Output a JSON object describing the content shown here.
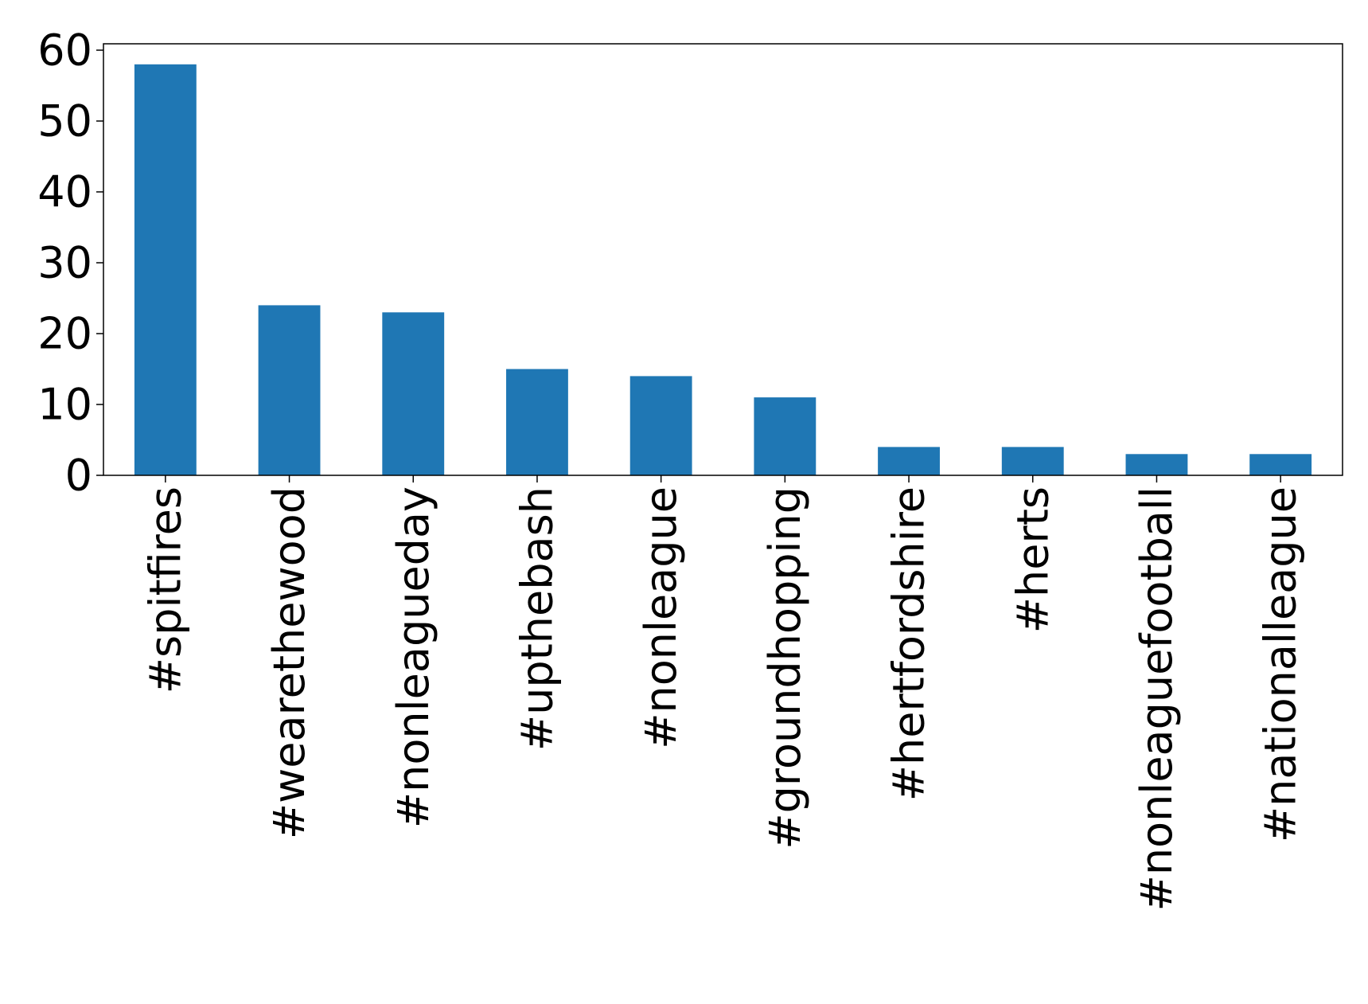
{
  "chart_data": {
    "type": "bar",
    "categories": [
      "#spitfires",
      "#wearethewood",
      "#nonleagueday",
      "#upthebash",
      "#nonleague",
      "#groundhopping",
      "#hertfordshire",
      "#herts",
      "#nonleaguefootball",
      "#nationalleague"
    ],
    "values": [
      58,
      24,
      23,
      15,
      14,
      11,
      4,
      4,
      3,
      3
    ],
    "color": "#1f77b4",
    "ylim": [
      0,
      60.9
    ],
    "yticks": [
      0,
      10,
      20,
      30,
      40,
      50,
      60
    ],
    "grid": false
  }
}
